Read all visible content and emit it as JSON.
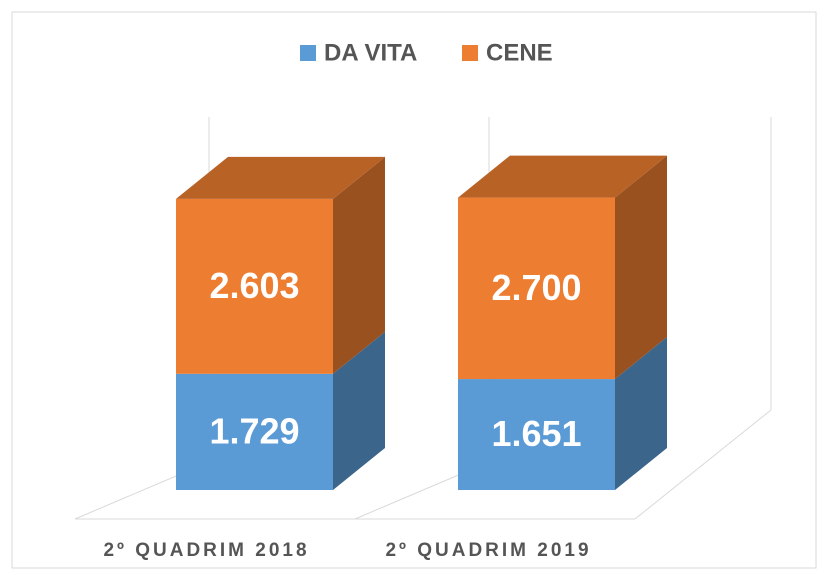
{
  "chart_data": {
    "type": "bar3d_stacked",
    "categories": [
      "2º QUADRIM 2018",
      "2º QUADRIM 2019"
    ],
    "series": [
      {
        "name": "DA VITA",
        "color": "#5b9bd5",
        "values": [
          1729,
          1651
        ],
        "value_labels": [
          "1.729",
          "1.651"
        ]
      },
      {
        "name": "CENE",
        "color": "#ed7d31",
        "values": [
          2603,
          2700
        ],
        "value_labels": [
          "2.603",
          "2.700"
        ]
      }
    ],
    "legend": "top"
  }
}
